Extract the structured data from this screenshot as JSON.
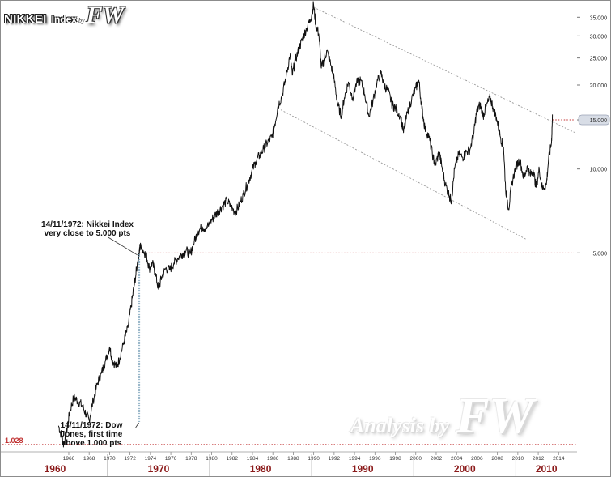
{
  "header": {
    "index_name": "NIKKEI",
    "index_word": "Index",
    "by_word": "by",
    "fw_logo": "FW"
  },
  "watermark": {
    "text": "Analysis by",
    "logo": "FW"
  },
  "annotations": {
    "top_line1": "14/11/1972: Nikkei Index",
    "top_line2": "very close to 5.000 pts",
    "bottom_line1": "14/11/1972: Dow",
    "bottom_line2": "Jones, first time",
    "bottom_line3": "above 1.000 pts",
    "low_value": "1.028",
    "highlight_value": "15.000"
  },
  "colors": {
    "decade_label": "#8b1a1a",
    "red_dotted": "#c03030",
    "price_line": "#111111",
    "trend_line": "#999999",
    "marker_line": "#7aa0b8"
  },
  "chart_data": {
    "type": "line",
    "y_scale": "log",
    "ylim": [
      1000,
      37000
    ],
    "xlim": [
      1959.5,
      2015.8
    ],
    "y_ticks": [
      {
        "value": 35000,
        "label": "35.000"
      },
      {
        "value": 30000,
        "label": "30.000"
      },
      {
        "value": 25000,
        "label": "25.000"
      },
      {
        "value": 20000,
        "label": "20.000"
      },
      {
        "value": 15000,
        "label": "15.000"
      },
      {
        "value": 10000,
        "label": "10.000"
      },
      {
        "value": 5000,
        "label": "5.000"
      }
    ],
    "x_ticks": [
      1966,
      1968,
      1970,
      1972,
      1974,
      1976,
      1978,
      1980,
      1982,
      1984,
      1986,
      1988,
      1990,
      1992,
      1994,
      1996,
      1998,
      2000,
      2002,
      2004,
      2006,
      2008,
      2010,
      2012,
      2014
    ],
    "decades": [
      {
        "label": "1960",
        "start": 1959.5,
        "end": 1969.8
      },
      {
        "label": "1970",
        "start": 1969.8,
        "end": 1979.8
      },
      {
        "label": "1980",
        "start": 1979.8,
        "end": 1989.8
      },
      {
        "label": "1990",
        "start": 1989.8,
        "end": 1999.8
      },
      {
        "label": "2000",
        "start": 1999.8,
        "end": 2009.8
      },
      {
        "label": "2010",
        "start": 2009.8,
        "end": 2015.8
      }
    ],
    "series": [
      {
        "points": [
          [
            1965.0,
            1200
          ],
          [
            1965.3,
            1100
          ],
          [
            1965.5,
            1028
          ],
          [
            1965.8,
            1150
          ],
          [
            1966.1,
            1350
          ],
          [
            1966.5,
            1520
          ],
          [
            1966.9,
            1470
          ],
          [
            1967.3,
            1420
          ],
          [
            1967.7,
            1320
          ],
          [
            1968.0,
            1260
          ],
          [
            1968.4,
            1480
          ],
          [
            1968.8,
            1700
          ],
          [
            1969.2,
            1850
          ],
          [
            1969.6,
            2050
          ],
          [
            1970.0,
            2300
          ],
          [
            1970.3,
            2050
          ],
          [
            1970.7,
            1950
          ],
          [
            1971.0,
            2100
          ],
          [
            1971.4,
            2400
          ],
          [
            1971.8,
            2700
          ],
          [
            1972.1,
            3200
          ],
          [
            1972.4,
            3800
          ],
          [
            1972.7,
            4500
          ],
          [
            1972.87,
            4950
          ],
          [
            1973.0,
            5300
          ],
          [
            1973.3,
            5100
          ],
          [
            1973.6,
            4900
          ],
          [
            1973.9,
            4400
          ],
          [
            1974.2,
            4600
          ],
          [
            1974.5,
            4200
          ],
          [
            1974.8,
            3700
          ],
          [
            1975.1,
            4100
          ],
          [
            1975.5,
            4400
          ],
          [
            1975.9,
            4350
          ],
          [
            1976.3,
            4600
          ],
          [
            1976.7,
            4800
          ],
          [
            1977.1,
            4950
          ],
          [
            1977.5,
            5100
          ],
          [
            1977.9,
            4950
          ],
          [
            1978.3,
            5500
          ],
          [
            1978.7,
            6000
          ],
          [
            1979.1,
            6200
          ],
          [
            1979.5,
            6100
          ],
          [
            1979.9,
            6500
          ],
          [
            1980.3,
            6800
          ],
          [
            1980.7,
            7100
          ],
          [
            1981.1,
            7400
          ],
          [
            1981.5,
            7700
          ],
          [
            1981.9,
            7300
          ],
          [
            1982.3,
            7000
          ],
          [
            1982.7,
            7400
          ],
          [
            1983.1,
            8100
          ],
          [
            1983.5,
            8800
          ],
          [
            1983.9,
            9700
          ],
          [
            1984.3,
            10600
          ],
          [
            1984.7,
            11200
          ],
          [
            1985.1,
            11800
          ],
          [
            1985.5,
            12500
          ],
          [
            1985.9,
            13000
          ],
          [
            1986.2,
            14500
          ],
          [
            1986.5,
            16800
          ],
          [
            1986.9,
            18300
          ],
          [
            1987.3,
            21500
          ],
          [
            1987.7,
            25800
          ],
          [
            1987.9,
            21700
          ],
          [
            1988.2,
            24500
          ],
          [
            1988.6,
            27300
          ],
          [
            1988.95,
            29500
          ],
          [
            1989.3,
            32000
          ],
          [
            1989.7,
            34500
          ],
          [
            1989.99,
            38900
          ],
          [
            1990.2,
            33000
          ],
          [
            1990.5,
            30500
          ],
          [
            1990.75,
            23000
          ],
          [
            1991.0,
            24500
          ],
          [
            1991.3,
            26500
          ],
          [
            1991.7,
            23500
          ],
          [
            1992.0,
            21000
          ],
          [
            1992.35,
            17000
          ],
          [
            1992.7,
            15500
          ],
          [
            1993.0,
            18000
          ],
          [
            1993.4,
            20500
          ],
          [
            1993.8,
            18000
          ],
          [
            1994.2,
            20300
          ],
          [
            1994.6,
            20800
          ],
          [
            1995.0,
            18500
          ],
          [
            1995.4,
            15500
          ],
          [
            1995.8,
            17500
          ],
          [
            1996.2,
            20500
          ],
          [
            1996.6,
            22000
          ],
          [
            1996.9,
            20000
          ],
          [
            1997.3,
            19000
          ],
          [
            1997.7,
            17000
          ],
          [
            1998.0,
            16500
          ],
          [
            1998.5,
            15500
          ],
          [
            1998.8,
            13500
          ],
          [
            1999.2,
            16000
          ],
          [
            1999.6,
            17800
          ],
          [
            2000.0,
            19500
          ],
          [
            2000.3,
            20800
          ],
          [
            2000.6,
            16500
          ],
          [
            2000.9,
            14000
          ],
          [
            2001.3,
            13000
          ],
          [
            2001.7,
            11000
          ],
          [
            2001.9,
            10300
          ],
          [
            2002.3,
            11500
          ],
          [
            2002.6,
            10000
          ],
          [
            2002.9,
            8800
          ],
          [
            2003.3,
            8000
          ],
          [
            2003.5,
            7700
          ],
          [
            2003.8,
            10000
          ],
          [
            2004.2,
            11300
          ],
          [
            2004.6,
            11000
          ],
          [
            2004.9,
            11500
          ],
          [
            2005.3,
            11700
          ],
          [
            2005.7,
            13500
          ],
          [
            2005.95,
            16000
          ],
          [
            2006.3,
            17000
          ],
          [
            2006.6,
            15500
          ],
          [
            2006.9,
            16800
          ],
          [
            2007.3,
            18000
          ],
          [
            2007.6,
            16500
          ],
          [
            2007.9,
            15300
          ],
          [
            2008.3,
            13000
          ],
          [
            2008.6,
            12000
          ],
          [
            2008.8,
            8500
          ],
          [
            2009.1,
            7200
          ],
          [
            2009.4,
            8800
          ],
          [
            2009.8,
            10200
          ],
          [
            2010.2,
            10800
          ],
          [
            2010.6,
            9200
          ],
          [
            2010.9,
            10200
          ],
          [
            2011.2,
            9500
          ],
          [
            2011.5,
            9900
          ],
          [
            2011.8,
            8600
          ],
          [
            2012.1,
            10000
          ],
          [
            2012.4,
            8500
          ],
          [
            2012.8,
            8800
          ],
          [
            2013.0,
            10700
          ],
          [
            2013.3,
            12500
          ],
          [
            2013.4,
            15600
          ]
        ]
      }
    ],
    "trend_lines": [
      {
        "from": [
          1990.0,
          38000
        ],
        "to": [
          2015.6,
          13500
        ]
      },
      {
        "from": [
          1986.5,
          16500
        ],
        "to": [
          2010.8,
          5600
        ]
      }
    ],
    "reference_levels": [
      {
        "value": 5000,
        "from": 1973.0
      },
      {
        "value": 15000,
        "from": 2013.4
      },
      {
        "value": 1028,
        "from": 1959.5
      }
    ],
    "event_x": 1972.87
  }
}
